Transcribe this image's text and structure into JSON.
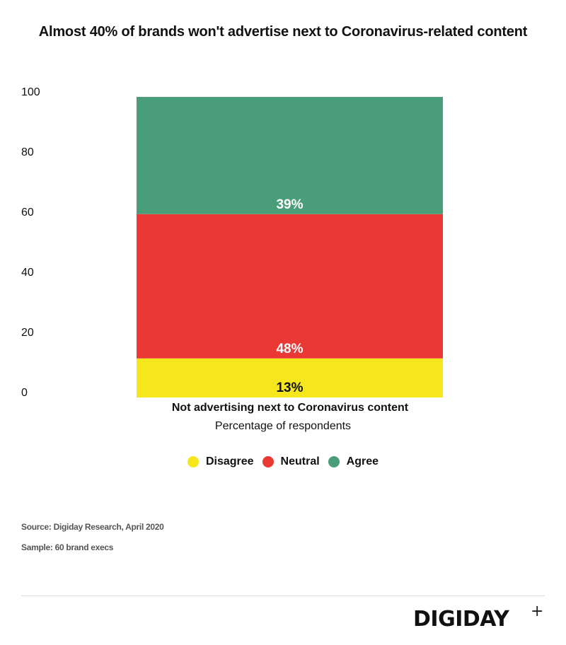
{
  "title": "Almost 40% of brands won't advertise next to Coronavirus-related content",
  "chart_data": {
    "type": "bar",
    "stacked": true,
    "categories": [
      "Not advertising next to Coronavirus content"
    ],
    "series": [
      {
        "name": "Disagree",
        "values": [
          13
        ],
        "label": "13%",
        "color": "#f5e61e"
      },
      {
        "name": "Neutral",
        "values": [
          48
        ],
        "label": "48%",
        "color": "#ea3834"
      },
      {
        "name": "Agree",
        "values": [
          39
        ],
        "label": "39%",
        "color": "#4a9d79"
      }
    ],
    "xlabel": "Percentage of respondents",
    "ylim": [
      0,
      100
    ],
    "yticks": [
      "0",
      "20",
      "40",
      "60",
      "80",
      "100"
    ],
    "grid": false,
    "legend_position": "bottom"
  },
  "legend": {
    "items": [
      {
        "label": "Disagree",
        "color": "#f5e61e"
      },
      {
        "label": "Neutral",
        "color": "#ea3834"
      },
      {
        "label": "Agree",
        "color": "#4a9d79"
      }
    ]
  },
  "footer": {
    "source": "Source: Digiday Research, April 2020",
    "sample": "Sample: 60 brand execs",
    "logo": "DIGIDAY",
    "logo_mark": "+"
  }
}
